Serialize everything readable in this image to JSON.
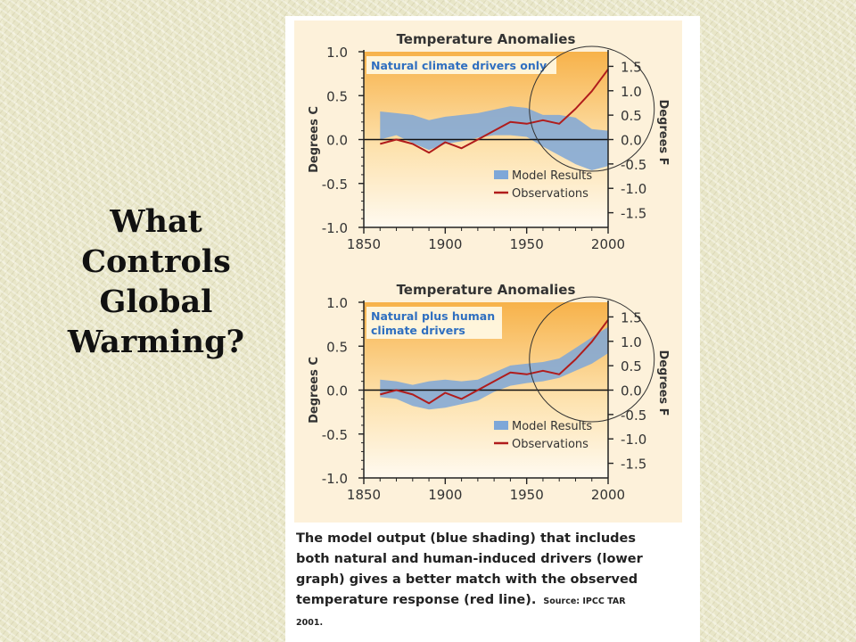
{
  "slide": {
    "title_lines": [
      "What",
      "Controls",
      "Global",
      "Warming?"
    ]
  },
  "caption": {
    "text": "The model output (blue shading) that includes both natural and human-induced drivers (lower graph) gives a better match with the observed temperature response (red line).",
    "source": "Source: IPCC TAR 2001."
  },
  "colors": {
    "model_band": "#7ea7d8",
    "observations": "#b01c1c",
    "background_orange": "#f7b24a",
    "inset_text": "#2f6fc0"
  },
  "chart_data": [
    {
      "type": "line",
      "title": "Temperature Anomalies",
      "annotation": "Natural climate drivers only",
      "ylabel": "Degrees C",
      "ylabel_right": "Degrees F",
      "xlim": [
        1850,
        2000
      ],
      "ylim": [
        -1.0,
        1.0
      ],
      "x_ticks": [
        1850,
        1900,
        1950,
        2000
      ],
      "y_ticks": [
        1.0,
        0.5,
        0.0,
        -0.5,
        -1.0
      ],
      "y_ticks_right": [
        "1.5",
        "1.0",
        "0.5",
        "0.0",
        "-0.5",
        "-1.0",
        "-1.5"
      ],
      "legend": [
        "Model Results",
        "Observations"
      ],
      "legend_position": "bottom-right",
      "highlight": "circle around 1975-2000",
      "x": [
        1860,
        1870,
        1880,
        1890,
        1900,
        1910,
        1920,
        1930,
        1940,
        1950,
        1960,
        1970,
        1980,
        1990,
        2000
      ],
      "series": [
        {
          "name": "Model Results",
          "kind": "band",
          "upper": [
            0.32,
            0.3,
            0.28,
            0.22,
            0.26,
            0.28,
            0.3,
            0.34,
            0.38,
            0.36,
            0.28,
            0.28,
            0.25,
            0.12,
            0.1
          ],
          "lower": [
            0.0,
            0.05,
            -0.04,
            -0.12,
            -0.05,
            -0.02,
            0.02,
            0.05,
            0.05,
            0.03,
            -0.08,
            -0.18,
            -0.28,
            -0.35,
            -0.3
          ]
        },
        {
          "name": "Observations",
          "kind": "line",
          "values": [
            -0.05,
            0.0,
            -0.05,
            -0.15,
            -0.03,
            -0.1,
            0.0,
            0.1,
            0.2,
            0.18,
            0.22,
            0.18,
            0.35,
            0.55,
            0.8
          ]
        }
      ]
    },
    {
      "type": "line",
      "title": "Temperature Anomalies",
      "annotation": "Natural plus human climate drivers",
      "ylabel": "Degrees C",
      "ylabel_right": "Degrees F",
      "xlim": [
        1850,
        2000
      ],
      "ylim": [
        -1.0,
        1.0
      ],
      "x_ticks": [
        1850,
        1900,
        1950,
        2000
      ],
      "y_ticks": [
        1.0,
        0.5,
        0.0,
        -0.5,
        -1.0
      ],
      "y_ticks_right": [
        "1.5",
        "1.0",
        "0.5",
        "0.0",
        "-0.5",
        "-1.0",
        "-1.5"
      ],
      "legend": [
        "Model Results",
        "Observations"
      ],
      "legend_position": "bottom-right",
      "highlight": "circle around 1975-2000",
      "x": [
        1860,
        1870,
        1880,
        1890,
        1900,
        1910,
        1920,
        1930,
        1940,
        1950,
        1960,
        1970,
        1980,
        1990,
        2000
      ],
      "series": [
        {
          "name": "Model Results",
          "kind": "band",
          "upper": [
            0.12,
            0.1,
            0.06,
            0.1,
            0.12,
            0.1,
            0.12,
            0.2,
            0.28,
            0.3,
            0.32,
            0.36,
            0.48,
            0.6,
            0.72
          ],
          "lower": [
            -0.08,
            -0.1,
            -0.18,
            -0.22,
            -0.2,
            -0.16,
            -0.12,
            -0.02,
            0.05,
            0.08,
            0.1,
            0.14,
            0.22,
            0.3,
            0.42
          ]
        },
        {
          "name": "Observations",
          "kind": "line",
          "values": [
            -0.05,
            0.0,
            -0.05,
            -0.15,
            -0.03,
            -0.1,
            0.0,
            0.1,
            0.2,
            0.18,
            0.22,
            0.18,
            0.35,
            0.55,
            0.8
          ]
        }
      ]
    }
  ]
}
